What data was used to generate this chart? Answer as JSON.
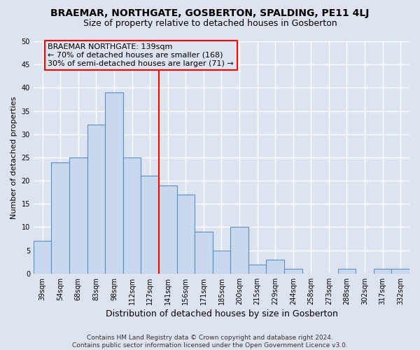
{
  "title": "BRAEMAR, NORTHGATE, GOSBERTON, SPALDING, PE11 4LJ",
  "subtitle": "Size of property relative to detached houses in Gosberton",
  "xlabel": "Distribution of detached houses by size in Gosberton",
  "ylabel": "Number of detached properties",
  "categories": [
    "39sqm",
    "54sqm",
    "68sqm",
    "83sqm",
    "98sqm",
    "112sqm",
    "127sqm",
    "141sqm",
    "156sqm",
    "171sqm",
    "185sqm",
    "200sqm",
    "215sqm",
    "229sqm",
    "244sqm",
    "258sqm",
    "273sqm",
    "288sqm",
    "302sqm",
    "317sqm",
    "332sqm"
  ],
  "values": [
    7,
    24,
    25,
    32,
    39,
    25,
    21,
    19,
    17,
    9,
    5,
    10,
    2,
    3,
    1,
    0,
    0,
    1,
    0,
    1,
    1
  ],
  "bar_color": "#c9d9ed",
  "bar_edge_color": "#5b8fc9",
  "highlight_line_idx": 7,
  "annotation_line0": "BRAEMAR NORTHGATE: 139sqm",
  "annotation_line1": "← 70% of detached houses are smaller (168)",
  "annotation_line2": "30% of semi-detached houses are larger (71) →",
  "footer": "Contains HM Land Registry data © Crown copyright and database right 2024.\nContains public sector information licensed under the Open Government Licence v3.0.",
  "ylim": [
    0,
    50
  ],
  "yticks": [
    0,
    5,
    10,
    15,
    20,
    25,
    30,
    35,
    40,
    45,
    50
  ],
  "background_color": "#dde4f0",
  "grid_color": "#ffffff",
  "title_fontsize": 10,
  "subtitle_fontsize": 9,
  "ylabel_fontsize": 8,
  "xlabel_fontsize": 9,
  "tick_fontsize": 7,
  "annotation_fontsize": 8,
  "footer_fontsize": 6.5
}
